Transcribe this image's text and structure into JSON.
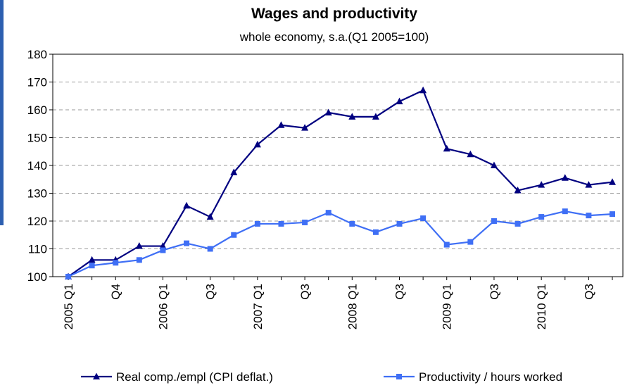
{
  "chart_data": {
    "type": "line",
    "title": "Wages and productivity",
    "subtitle": "whole economy, s.a.(Q1 2005=100)",
    "categories": [
      "2005 Q1",
      null,
      "Q4",
      null,
      "2006 Q1",
      null,
      "Q3",
      null,
      "2007 Q1",
      null,
      "Q3",
      null,
      "2008 Q1",
      null,
      "Q3",
      null,
      "2009 Q1",
      null,
      "Q3",
      null,
      "2010 Q1",
      null,
      "Q3",
      null
    ],
    "series": [
      {
        "name": "Real comp./empl (CPI deflat.)",
        "color": "#000080",
        "marker": "triangle",
        "values": [
          100,
          106,
          106,
          111,
          111,
          125.5,
          121.5,
          137.5,
          147.5,
          154.5,
          153.5,
          159,
          157.5,
          157.5,
          163,
          167,
          146,
          144,
          140,
          131,
          133,
          135.5,
          133,
          134
        ]
      },
      {
        "name": "Productivity / hours worked",
        "color": "#3f6ff5",
        "marker": "square",
        "values": [
          100,
          104,
          105,
          106,
          109.5,
          112,
          110,
          115,
          119,
          119,
          119.5,
          123,
          119,
          116,
          119,
          121,
          111.5,
          112.5,
          120,
          119,
          121.5,
          123.5,
          122,
          122.5
        ]
      }
    ],
    "ylim": [
      100,
      180
    ],
    "yticks": [
      100,
      110,
      120,
      130,
      140,
      150,
      160,
      170,
      180
    ],
    "grid": true
  }
}
